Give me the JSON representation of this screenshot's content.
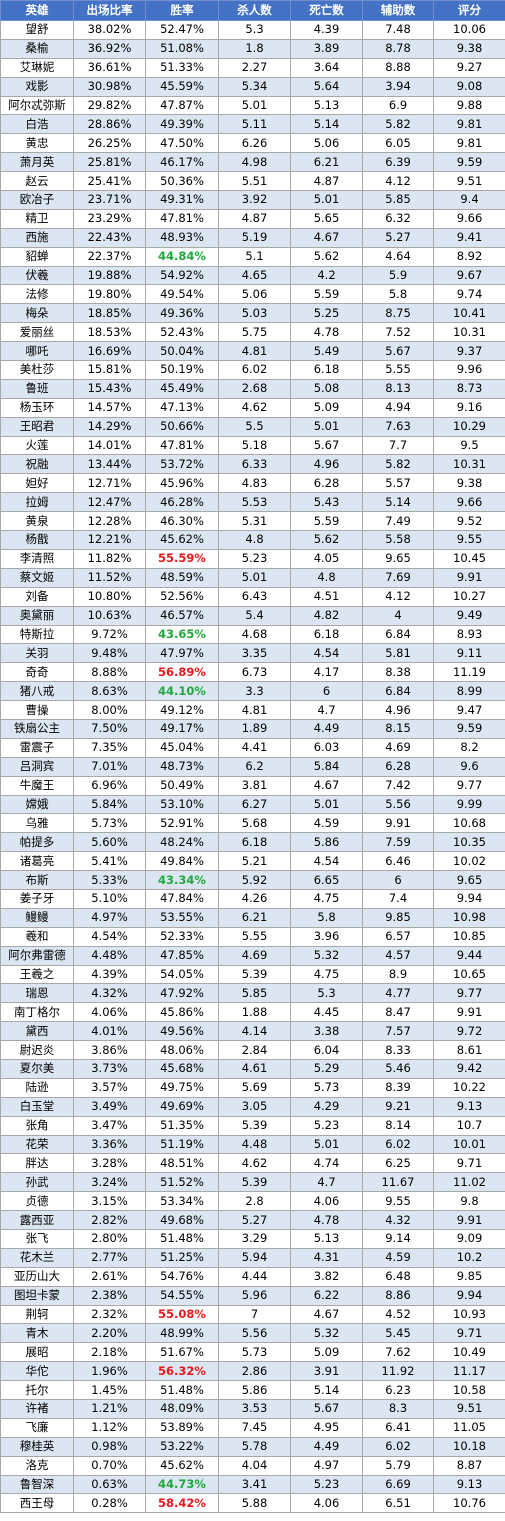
{
  "headers": [
    "英雄",
    "出场比率",
    "胜率",
    "杀人数",
    "死亡数",
    "辅助数",
    "评分"
  ],
  "colors": {
    "header_bg": "#4472c4",
    "stripe": "#dce6f2",
    "high_winrate": "#e8191c",
    "low_winrate": "#1fa83b"
  },
  "rows": [
    [
      "望舒",
      "38.02%",
      "52.47%",
      "5.3",
      "4.39",
      "7.48",
      "10.06",
      ""
    ],
    [
      "桑榆",
      "36.92%",
      "51.08%",
      "1.8",
      "3.89",
      "8.78",
      "9.38",
      ""
    ],
    [
      "艾琳妮",
      "36.61%",
      "51.33%",
      "2.27",
      "3.64",
      "8.88",
      "9.27",
      ""
    ],
    [
      "戏影",
      "30.98%",
      "45.59%",
      "5.34",
      "5.64",
      "3.94",
      "9.08",
      ""
    ],
    [
      "阿尔忒弥斯",
      "29.82%",
      "47.87%",
      "5.01",
      "5.13",
      "6.9",
      "9.88",
      ""
    ],
    [
      "白浩",
      "28.86%",
      "49.39%",
      "5.11",
      "5.14",
      "5.82",
      "9.81",
      ""
    ],
    [
      "黄忠",
      "26.25%",
      "47.50%",
      "6.26",
      "5.06",
      "6.05",
      "9.81",
      ""
    ],
    [
      "萧月英",
      "25.81%",
      "46.17%",
      "4.98",
      "6.21",
      "6.39",
      "9.59",
      ""
    ],
    [
      "赵云",
      "25.41%",
      "50.36%",
      "5.51",
      "4.87",
      "4.12",
      "9.51",
      ""
    ],
    [
      "欧冶子",
      "23.71%",
      "49.31%",
      "3.92",
      "5.01",
      "5.85",
      "9.4",
      ""
    ],
    [
      "精卫",
      "23.29%",
      "47.81%",
      "4.87",
      "5.65",
      "6.32",
      "9.66",
      ""
    ],
    [
      "西施",
      "22.43%",
      "48.93%",
      "5.19",
      "4.67",
      "5.27",
      "9.41",
      ""
    ],
    [
      "貂蝉",
      "22.37%",
      "44.84%",
      "5.1",
      "5.62",
      "4.64",
      "8.92",
      "low"
    ],
    [
      "伏羲",
      "19.88%",
      "54.92%",
      "4.65",
      "4.2",
      "5.9",
      "9.67",
      ""
    ],
    [
      "法修",
      "19.80%",
      "49.54%",
      "5.06",
      "5.59",
      "5.8",
      "9.74",
      ""
    ],
    [
      "梅朵",
      "18.85%",
      "49.36%",
      "5.03",
      "5.25",
      "8.75",
      "10.41",
      ""
    ],
    [
      "爱丽丝",
      "18.53%",
      "52.43%",
      "5.75",
      "4.78",
      "7.52",
      "10.31",
      ""
    ],
    [
      "哪吒",
      "16.69%",
      "50.04%",
      "4.81",
      "5.49",
      "5.67",
      "9.37",
      ""
    ],
    [
      "美杜莎",
      "15.81%",
      "50.19%",
      "6.02",
      "6.18",
      "5.55",
      "9.96",
      ""
    ],
    [
      "鲁班",
      "15.43%",
      "45.49%",
      "2.68",
      "5.08",
      "8.13",
      "8.73",
      ""
    ],
    [
      "杨玉环",
      "14.57%",
      "47.13%",
      "4.62",
      "5.09",
      "4.94",
      "9.16",
      ""
    ],
    [
      "王昭君",
      "14.29%",
      "50.66%",
      "5.5",
      "5.01",
      "7.63",
      "10.29",
      ""
    ],
    [
      "火莲",
      "14.01%",
      "47.81%",
      "5.18",
      "5.67",
      "7.7",
      "9.5",
      ""
    ],
    [
      "祝融",
      "13.44%",
      "53.72%",
      "6.33",
      "4.96",
      "5.82",
      "10.31",
      ""
    ],
    [
      "妲好",
      "12.71%",
      "45.96%",
      "4.83",
      "6.28",
      "5.57",
      "9.38",
      ""
    ],
    [
      "拉姆",
      "12.47%",
      "46.28%",
      "5.53",
      "5.43",
      "5.14",
      "9.66",
      ""
    ],
    [
      "黄泉",
      "12.28%",
      "46.30%",
      "5.31",
      "5.59",
      "7.49",
      "9.52",
      ""
    ],
    [
      "杨戬",
      "12.21%",
      "45.62%",
      "4.8",
      "5.62",
      "5.58",
      "9.55",
      ""
    ],
    [
      "李清照",
      "11.82%",
      "55.59%",
      "5.23",
      "4.05",
      "9.65",
      "10.45",
      "high"
    ],
    [
      "蔡文姬",
      "11.52%",
      "48.59%",
      "5.01",
      "4.8",
      "7.69",
      "9.91",
      ""
    ],
    [
      "刘备",
      "10.80%",
      "52.56%",
      "6.43",
      "4.51",
      "4.12",
      "10.27",
      ""
    ],
    [
      "奥黛丽",
      "10.63%",
      "46.57%",
      "5.4",
      "4.82",
      "4",
      "9.49",
      ""
    ],
    [
      "特斯拉",
      "9.72%",
      "43.65%",
      "4.68",
      "6.18",
      "6.84",
      "8.93",
      "low"
    ],
    [
      "关羽",
      "9.48%",
      "47.97%",
      "3.35",
      "4.54",
      "5.81",
      "9.11",
      ""
    ],
    [
      "奇奇",
      "8.88%",
      "56.89%",
      "6.73",
      "4.17",
      "8.38",
      "11.19",
      "high"
    ],
    [
      "猪八戒",
      "8.63%",
      "44.10%",
      "3.3",
      "6",
      "6.84",
      "8.99",
      "low"
    ],
    [
      "曹操",
      "8.00%",
      "49.12%",
      "4.81",
      "4.7",
      "4.96",
      "9.47",
      ""
    ],
    [
      "铁扇公主",
      "7.50%",
      "49.17%",
      "1.89",
      "4.49",
      "8.15",
      "9.59",
      ""
    ],
    [
      "雷震子",
      "7.35%",
      "45.04%",
      "4.41",
      "6.03",
      "4.69",
      "8.2",
      ""
    ],
    [
      "吕洞宾",
      "7.01%",
      "48.73%",
      "6.2",
      "5.84",
      "6.28",
      "9.6",
      ""
    ],
    [
      "牛魔王",
      "6.96%",
      "50.49%",
      "3.81",
      "4.67",
      "7.42",
      "9.77",
      ""
    ],
    [
      "嫦娥",
      "5.84%",
      "53.10%",
      "6.27",
      "5.01",
      "5.56",
      "9.99",
      ""
    ],
    [
      "乌雅",
      "5.73%",
      "52.91%",
      "5.68",
      "4.59",
      "9.91",
      "10.68",
      ""
    ],
    [
      "帕提多",
      "5.60%",
      "48.24%",
      "6.18",
      "5.86",
      "7.59",
      "10.35",
      ""
    ],
    [
      "诸葛亮",
      "5.41%",
      "49.84%",
      "5.21",
      "4.54",
      "6.46",
      "10.02",
      ""
    ],
    [
      "布斯",
      "5.33%",
      "43.34%",
      "5.92",
      "6.65",
      "6",
      "9.65",
      "low"
    ],
    [
      "姜子牙",
      "5.10%",
      "47.84%",
      "4.26",
      "4.75",
      "7.4",
      "9.94",
      ""
    ],
    [
      "鳗鳗",
      "4.97%",
      "53.55%",
      "6.21",
      "5.8",
      "9.85",
      "10.98",
      ""
    ],
    [
      "羲和",
      "4.54%",
      "52.33%",
      "5.55",
      "3.96",
      "6.57",
      "10.85",
      ""
    ],
    [
      "阿尔弗雷德",
      "4.48%",
      "47.85%",
      "4.69",
      "5.32",
      "4.57",
      "9.44",
      ""
    ],
    [
      "王羲之",
      "4.39%",
      "54.05%",
      "5.39",
      "4.75",
      "8.9",
      "10.65",
      ""
    ],
    [
      "瑞恩",
      "4.32%",
      "47.92%",
      "5.85",
      "5.3",
      "4.77",
      "9.77",
      ""
    ],
    [
      "南丁格尔",
      "4.06%",
      "45.86%",
      "1.88",
      "4.45",
      "8.47",
      "9.91",
      ""
    ],
    [
      "黛西",
      "4.01%",
      "49.56%",
      "4.14",
      "3.38",
      "7.57",
      "9.72",
      ""
    ],
    [
      "尉迟炎",
      "3.86%",
      "48.06%",
      "2.84",
      "6.04",
      "8.33",
      "8.61",
      ""
    ],
    [
      "夏尔美",
      "3.73%",
      "45.68%",
      "4.61",
      "5.29",
      "5.46",
      "9.42",
      ""
    ],
    [
      "陆逊",
      "3.57%",
      "49.75%",
      "5.69",
      "5.73",
      "8.39",
      "10.22",
      ""
    ],
    [
      "白玉堂",
      "3.49%",
      "49.69%",
      "3.05",
      "4.29",
      "9.21",
      "9.13",
      ""
    ],
    [
      "张角",
      "3.47%",
      "51.35%",
      "5.39",
      "5.23",
      "8.14",
      "10.7",
      ""
    ],
    [
      "花荣",
      "3.36%",
      "51.19%",
      "4.48",
      "5.01",
      "6.02",
      "10.01",
      ""
    ],
    [
      "胖达",
      "3.28%",
      "48.51%",
      "4.62",
      "4.74",
      "6.25",
      "9.71",
      ""
    ],
    [
      "孙武",
      "3.24%",
      "51.52%",
      "5.39",
      "4.7",
      "11.67",
      "11.02",
      ""
    ],
    [
      "贞德",
      "3.15%",
      "53.34%",
      "2.8",
      "4.06",
      "9.55",
      "9.8",
      ""
    ],
    [
      "露西亚",
      "2.82%",
      "49.68%",
      "5.27",
      "4.78",
      "4.32",
      "9.91",
      ""
    ],
    [
      "张飞",
      "2.80%",
      "51.48%",
      "3.29",
      "5.13",
      "9.14",
      "9.09",
      ""
    ],
    [
      "花木兰",
      "2.77%",
      "51.25%",
      "5.94",
      "4.31",
      "4.59",
      "10.2",
      ""
    ],
    [
      "亚历山大",
      "2.61%",
      "54.76%",
      "4.44",
      "3.82",
      "6.48",
      "9.85",
      ""
    ],
    [
      "图坦卡蒙",
      "2.38%",
      "54.55%",
      "5.96",
      "6.22",
      "8.86",
      "9.94",
      ""
    ],
    [
      "荆轲",
      "2.32%",
      "55.08%",
      "7",
      "4.67",
      "4.52",
      "10.93",
      "high"
    ],
    [
      "青木",
      "2.20%",
      "48.99%",
      "5.56",
      "5.32",
      "5.45",
      "9.71",
      ""
    ],
    [
      "展昭",
      "2.18%",
      "51.67%",
      "5.73",
      "5.09",
      "7.62",
      "10.49",
      ""
    ],
    [
      "华佗",
      "1.96%",
      "56.32%",
      "2.86",
      "3.91",
      "11.92",
      "11.17",
      "high"
    ],
    [
      "托尔",
      "1.45%",
      "51.48%",
      "5.86",
      "5.14",
      "6.23",
      "10.58",
      ""
    ],
    [
      "许褚",
      "1.21%",
      "48.09%",
      "3.53",
      "5.67",
      "8.3",
      "9.51",
      ""
    ],
    [
      "飞廉",
      "1.12%",
      "53.89%",
      "7.45",
      "4.95",
      "6.41",
      "11.05",
      ""
    ],
    [
      "穆桂英",
      "0.98%",
      "53.22%",
      "5.78",
      "4.49",
      "6.02",
      "10.18",
      ""
    ],
    [
      "洛克",
      "0.70%",
      "45.62%",
      "4.04",
      "4.97",
      "5.79",
      "8.87",
      ""
    ],
    [
      "鲁智深",
      "0.63%",
      "44.73%",
      "3.41",
      "5.23",
      "6.69",
      "9.13",
      "low"
    ],
    [
      "西王母",
      "0.28%",
      "58.42%",
      "5.88",
      "4.06",
      "6.51",
      "10.76",
      "high"
    ]
  ]
}
